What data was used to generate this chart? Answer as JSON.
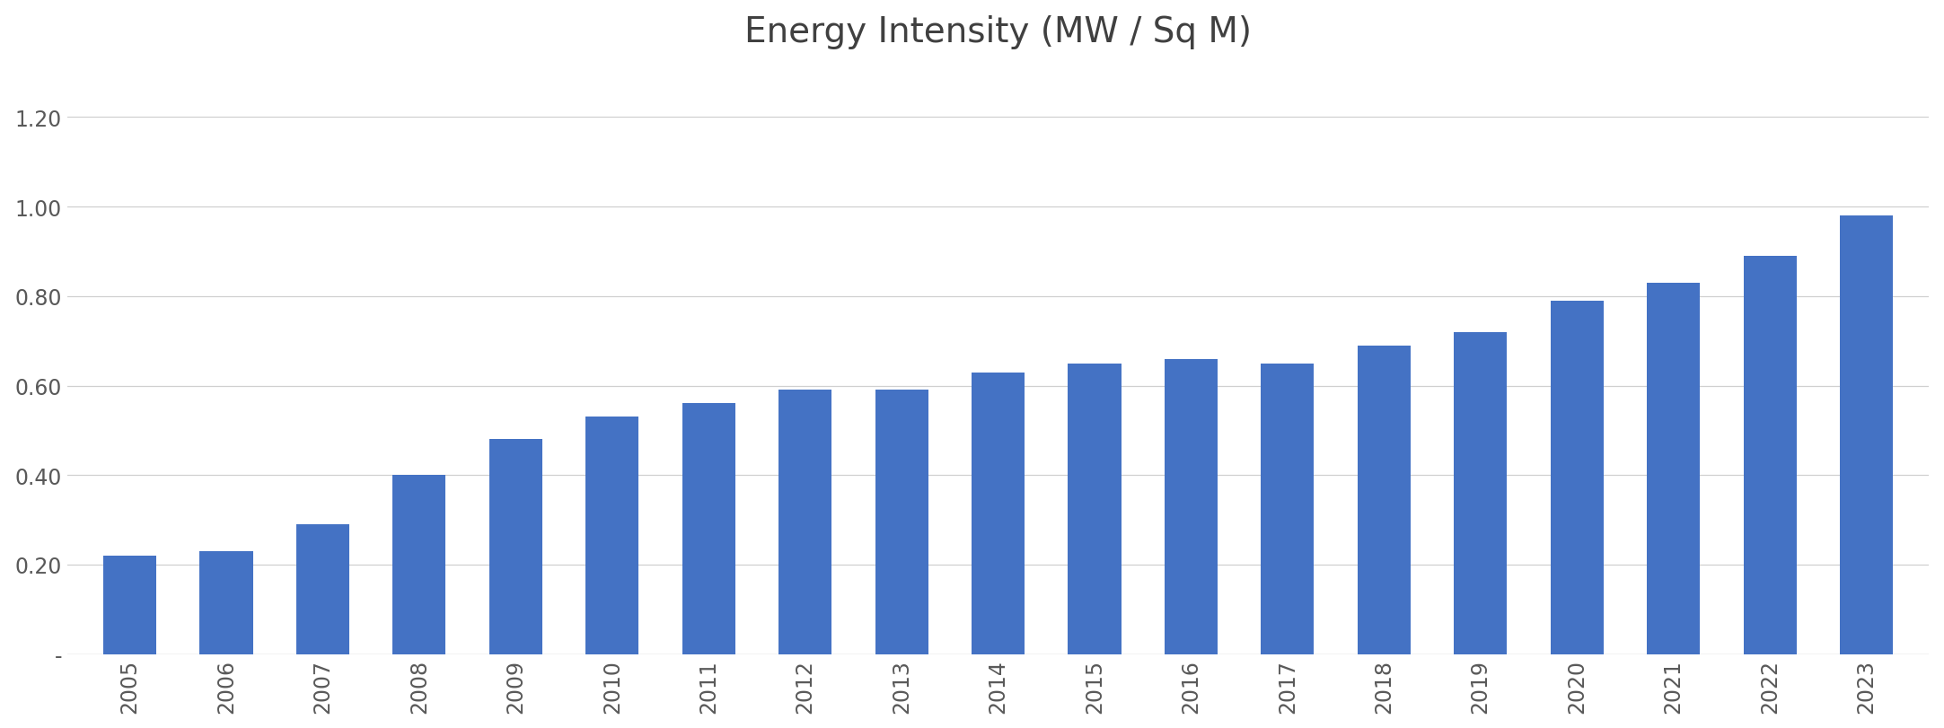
{
  "title": "Energy Intensity (MW / Sq M)",
  "categories": [
    "2005",
    "2006",
    "2007",
    "2008",
    "2009",
    "2010",
    "2011",
    "2012",
    "2013",
    "2014",
    "2015",
    "2016",
    "2017",
    "2018",
    "2019",
    "2020",
    "2021",
    "2022",
    "2023"
  ],
  "values": [
    0.22,
    0.23,
    0.29,
    0.4,
    0.48,
    0.53,
    0.56,
    0.59,
    0.59,
    0.63,
    0.65,
    0.66,
    0.65,
    0.69,
    0.72,
    0.79,
    0.83,
    0.89,
    0.98
  ],
  "bar_color": "#4472C4",
  "background_color": "#ffffff",
  "ylim": [
    0,
    1.32
  ],
  "yticks": [
    0,
    0.2,
    0.4,
    0.6,
    0.8,
    1.0,
    1.2
  ],
  "ytick_labels": [
    "-",
    "0.20",
    "0.40",
    "0.60",
    "0.80",
    "1.00",
    "1.20"
  ],
  "title_fontsize": 28,
  "tick_fontsize": 17,
  "grid_color": "#d0d0d0",
  "bar_width": 0.55
}
